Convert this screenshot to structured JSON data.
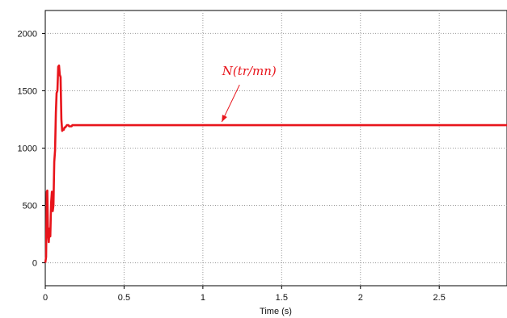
{
  "chart_data": {
    "type": "line",
    "title": "",
    "xlabel": "Time (s)",
    "ylabel": "",
    "xlim": [
      0,
      2.93
    ],
    "ylim": [
      -200,
      2200
    ],
    "x_ticks": [
      0,
      0.5,
      1,
      1.5,
      2,
      2.5
    ],
    "x_tick_labels": [
      "0",
      "0.5",
      "1",
      "1.5",
      "2",
      "2.5"
    ],
    "y_ticks": [
      0,
      500,
      1000,
      1500,
      2000
    ],
    "y_tick_labels": [
      "0",
      "500",
      "1000",
      "1500",
      "2000"
    ],
    "grid": true,
    "legend": "none",
    "annotation": {
      "text": "N(tr/mn)",
      "points_to": {
        "x": 1.12,
        "y": 1200
      },
      "color": "#e8141b"
    },
    "series": [
      {
        "color": "#e8141b",
        "x": [
          0,
          0.005,
          0.01,
          0.013,
          0.017,
          0.022,
          0.027,
          0.032,
          0.037,
          0.042,
          0.047,
          0.052,
          0.057,
          0.062,
          0.067,
          0.072,
          0.077,
          0.082,
          0.087,
          0.092,
          0.097,
          0.102,
          0.107,
          0.112,
          0.117,
          0.122,
          0.127,
          0.132,
          0.137,
          0.142,
          0.147,
          0.152,
          0.157,
          0.162,
          0.167,
          0.172,
          0.18,
          0.19,
          0.2,
          0.21,
          0.22,
          0.23,
          0.24,
          0.25,
          0.3,
          0.5,
          1.0,
          1.5,
          2.0,
          2.5,
          2.93
        ],
        "y": [
          0,
          50,
          620,
          630,
          270,
          180,
          300,
          230,
          520,
          620,
          450,
          500,
          880,
          980,
          1310,
          1480,
          1500,
          1710,
          1720,
          1640,
          1620,
          1250,
          1150,
          1160,
          1160,
          1180,
          1180,
          1190,
          1200,
          1200,
          1200,
          1190,
          1190,
          1190,
          1190,
          1200,
          1200,
          1200,
          1200,
          1200,
          1200,
          1200,
          1200,
          1200,
          1200,
          1200,
          1200,
          1200,
          1200,
          1200,
          1200
        ]
      }
    ]
  }
}
